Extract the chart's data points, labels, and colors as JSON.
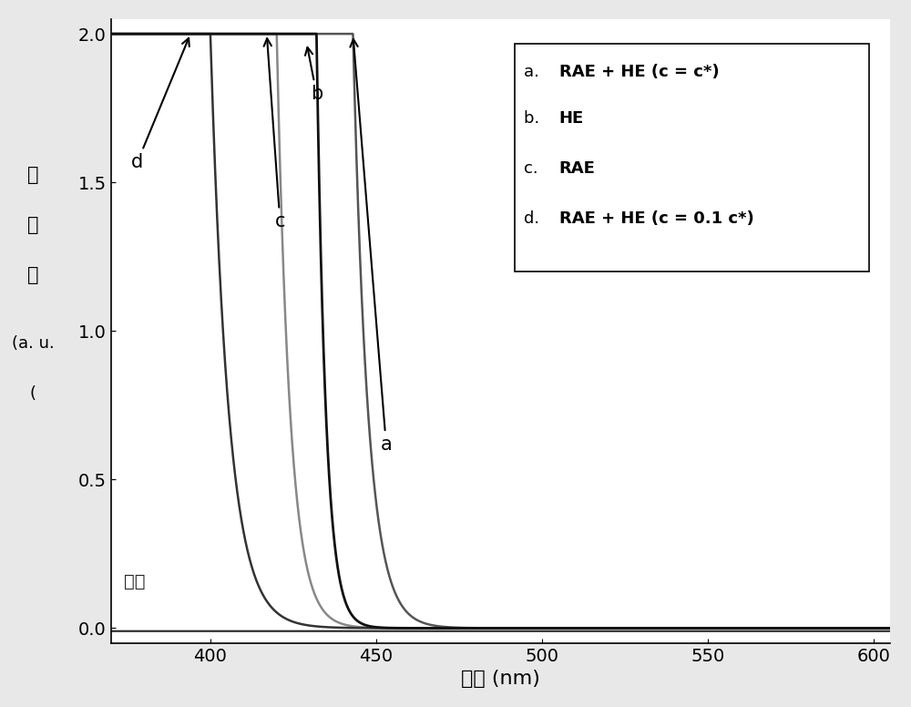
{
  "xlim": [
    370,
    605
  ],
  "ylim": [
    -0.05,
    2.05
  ],
  "yticks": [
    0.0,
    0.5,
    1.0,
    1.5,
    2.0
  ],
  "xticks": [
    400,
    450,
    500,
    550,
    600
  ],
  "background_color": "#e8e8e8",
  "plot_bg": "#ffffff",
  "curve_a_color": "#555555",
  "curve_b_color": "#111111",
  "curve_c_color": "#888888",
  "curve_d_color": "#333333",
  "baseline_color": "#222222",
  "curve_a_x0": 443,
  "curve_a_scale": 4.5,
  "curve_b_x0": 432,
  "curve_b_scale": 2.8,
  "curve_c_x0": 420,
  "curve_c_scale": 4.0,
  "curve_d_x0": 400,
  "curve_d_scale": 5.5
}
